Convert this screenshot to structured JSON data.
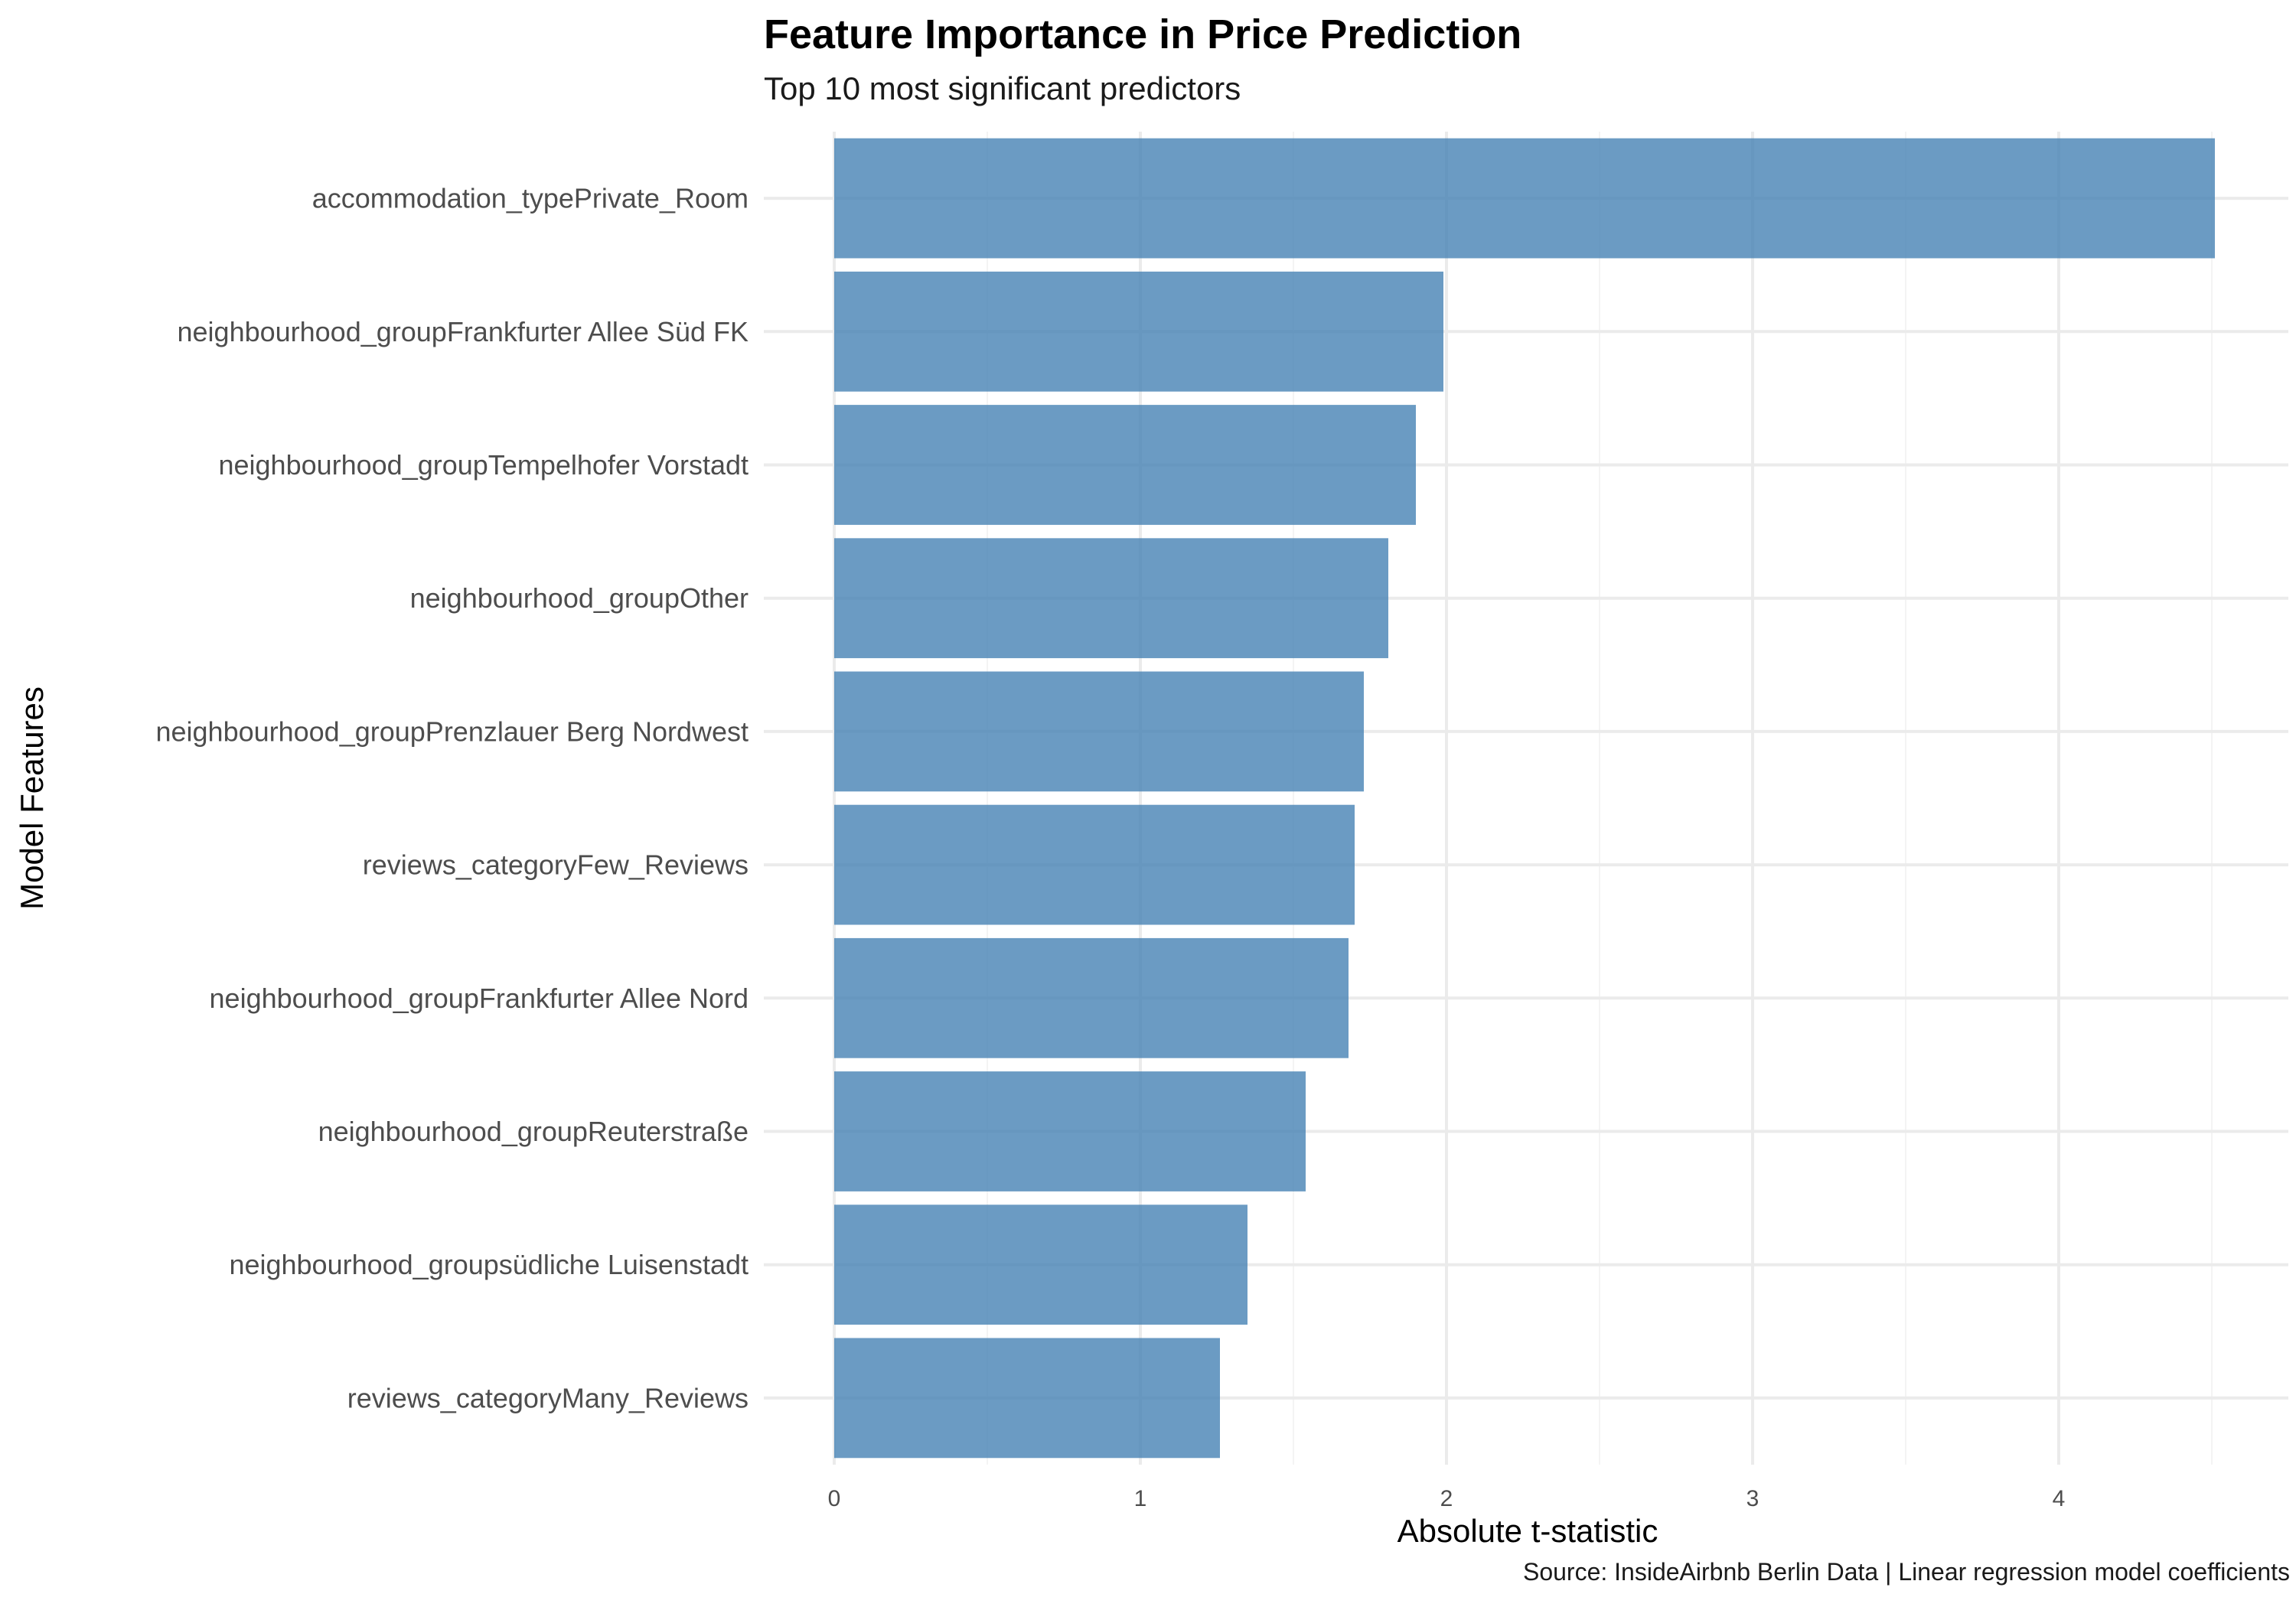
{
  "chart_data": {
    "type": "bar",
    "orientation": "horizontal",
    "title": "Feature Importance in Price Prediction",
    "subtitle": "Top 10 most significant predictors",
    "caption": "Source: InsideAirbnb Berlin Data | Linear regression model coefficients",
    "xlabel": "Absolute t-statistic",
    "ylabel": "Model Features",
    "categories": [
      "accommodation_typePrivate_Room",
      "neighbourhood_groupFrankfurter Allee Süd FK",
      "neighbourhood_groupTempelhofer Vorstadt",
      "neighbourhood_groupOther",
      "neighbourhood_groupPrenzlauer Berg Nordwest",
      "reviews_categoryFew_Reviews",
      "neighbourhood_groupFrankfurter Allee Nord",
      "neighbourhood_groupReuterstraße",
      "neighbourhood_groupsüdliche Luisenstadt",
      "reviews_categoryMany_Reviews"
    ],
    "values": [
      4.51,
      1.99,
      1.9,
      1.81,
      1.73,
      1.7,
      1.68,
      1.54,
      1.35,
      1.26
    ],
    "xlim": [
      0,
      4.73
    ],
    "xticks": [
      0,
      1,
      2,
      3,
      4
    ],
    "xtick_labels": [
      "0",
      "1",
      "2",
      "3",
      "4"
    ],
    "grid": true,
    "legend": "none",
    "colors": {
      "bar": "#4682B4",
      "grid_major": "#ebebeb",
      "grid_minor": "#f4f4f4",
      "axis_text": "#4d4d4d",
      "title_text": "#000000"
    }
  }
}
